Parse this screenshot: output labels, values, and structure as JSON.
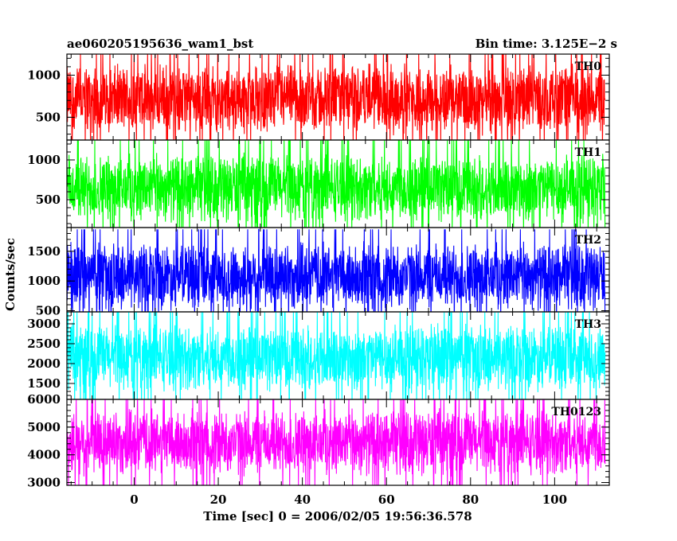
{
  "header": {
    "title": "ae060205195636_wam1_bst",
    "bin_time": "Bin time: 3.125E−2 s"
  },
  "chart_data": {
    "type": "line",
    "title": "ae060205195636_wam1_bst",
    "xlabel": "Time [sec] 0 = 2006/02/05 19:56:36.578",
    "ylabel": "Counts/sec",
    "xlim": [
      -16,
      113
    ],
    "x_data_range": [
      -16,
      112
    ],
    "x_ticks": [
      0,
      20,
      40,
      60,
      80,
      100
    ],
    "x_tick_labels": [
      "0",
      "20",
      "40",
      "60",
      "80",
      "100"
    ],
    "legend": "none",
    "grid": false,
    "panels": [
      {
        "name": "TH0",
        "color": "#ff0000",
        "ylim": [
          230,
          1250
        ],
        "y_ticks": [
          500,
          1000
        ],
        "y_tick_labels": [
          "500",
          "1000"
        ],
        "mean": 720,
        "typical_low": 300,
        "typical_high": 1150
      },
      {
        "name": "TH1",
        "color": "#00ff00",
        "ylim": [
          150,
          1250
        ],
        "y_ticks": [
          500,
          1000
        ],
        "y_tick_labels": [
          "500",
          "1000"
        ],
        "mean": 650,
        "typical_low": 220,
        "typical_high": 1100
      },
      {
        "name": "TH2",
        "color": "#0000ff",
        "ylim": [
          480,
          1900
        ],
        "y_ticks": [
          500,
          1000,
          1500
        ],
        "y_tick_labels": [
          "500",
          "1000",
          "1500"
        ],
        "mean": 1080,
        "typical_low": 580,
        "typical_high": 1750
      },
      {
        "name": "TH3",
        "color": "#00ffff",
        "ylim": [
          1100,
          3300
        ],
        "y_ticks": [
          1500,
          2000,
          2500,
          3000
        ],
        "y_tick_labels": [
          "1500",
          "2000",
          "2500",
          "3000"
        ],
        "mean": 2150,
        "typical_low": 1300,
        "typical_high": 3050
      },
      {
        "name": "TH0123",
        "color": "#ff00ff",
        "ylim": [
          2900,
          6000
        ],
        "y_ticks": [
          3000,
          4000,
          5000,
          6000
        ],
        "y_tick_labels": [
          "3000",
          "4000",
          "5000",
          "6000"
        ],
        "mean": 4450,
        "typical_low": 3250,
        "typical_high": 5700
      }
    ]
  }
}
